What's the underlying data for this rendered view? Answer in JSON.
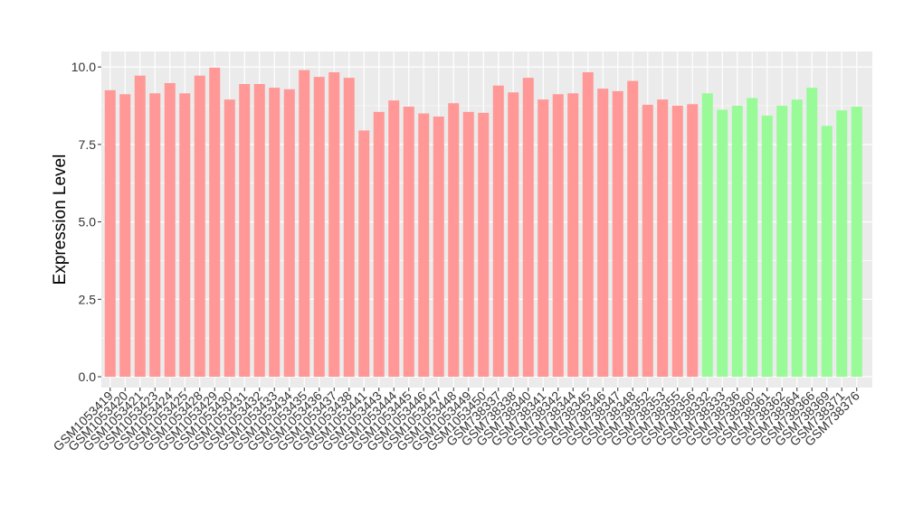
{
  "chart_data": {
    "type": "bar",
    "title": "",
    "xlabel": "",
    "ylabel": "Expression Level",
    "ylim": [
      -0.35,
      10.5
    ],
    "yticks": [
      0.0,
      2.5,
      5.0,
      7.5,
      10.0
    ],
    "ytick_labels": [
      "0.0",
      "2.5",
      "5.0",
      "7.5",
      "10.0"
    ],
    "grid": true,
    "legend": "none",
    "colors": {
      "group1": "#ff9896",
      "group2": "#98fb98",
      "panel": "#ebebeb",
      "grid": "#ffffff"
    },
    "categories": [
      "GSM1053419",
      "GSM1053420",
      "GSM1053421",
      "GSM1053423",
      "GSM1053424",
      "GSM1053425",
      "GSM1053428",
      "GSM1053429",
      "GSM1053430",
      "GSM1053431",
      "GSM1053432",
      "GSM1053433",
      "GSM1053434",
      "GSM1053435",
      "GSM1053436",
      "GSM1053437",
      "GSM1053438",
      "GSM1053441",
      "GSM1053443",
      "GSM1053444",
      "GSM1053445",
      "GSM1053446",
      "GSM1053447",
      "GSM1053448",
      "GSM1053449",
      "GSM1053450",
      "GSM738337",
      "GSM738338",
      "GSM738340",
      "GSM738341",
      "GSM738342",
      "GSM738344",
      "GSM738345",
      "GSM738346",
      "GSM738347",
      "GSM738348",
      "GSM738352",
      "GSM738353",
      "GSM738355",
      "GSM738356",
      "GSM738332",
      "GSM738333",
      "GSM738336",
      "GSM738360",
      "GSM738361",
      "GSM738362",
      "GSM738364",
      "GSM738366",
      "GSM738369",
      "GSM738371",
      "GSM738376"
    ],
    "values": [
      9.25,
      9.12,
      9.72,
      9.15,
      9.48,
      9.15,
      9.72,
      9.98,
      8.95,
      9.45,
      9.45,
      9.33,
      9.28,
      9.9,
      9.68,
      9.83,
      9.65,
      7.95,
      8.55,
      8.92,
      8.72,
      8.5,
      8.4,
      8.83,
      8.55,
      8.52,
      9.4,
      9.18,
      9.65,
      8.95,
      9.12,
      9.15,
      9.83,
      9.3,
      9.22,
      9.55,
      8.78,
      8.95,
      8.75,
      8.8,
      9.15,
      8.62,
      8.75,
      9.0,
      8.43,
      8.75,
      8.95,
      9.33,
      8.1,
      8.6,
      8.72
    ],
    "groups": [
      1,
      1,
      1,
      1,
      1,
      1,
      1,
      1,
      1,
      1,
      1,
      1,
      1,
      1,
      1,
      1,
      1,
      1,
      1,
      1,
      1,
      1,
      1,
      1,
      1,
      1,
      1,
      1,
      1,
      1,
      1,
      1,
      1,
      1,
      1,
      1,
      1,
      1,
      1,
      1,
      2,
      2,
      2,
      2,
      2,
      2,
      2,
      2,
      2,
      2,
      2
    ]
  }
}
